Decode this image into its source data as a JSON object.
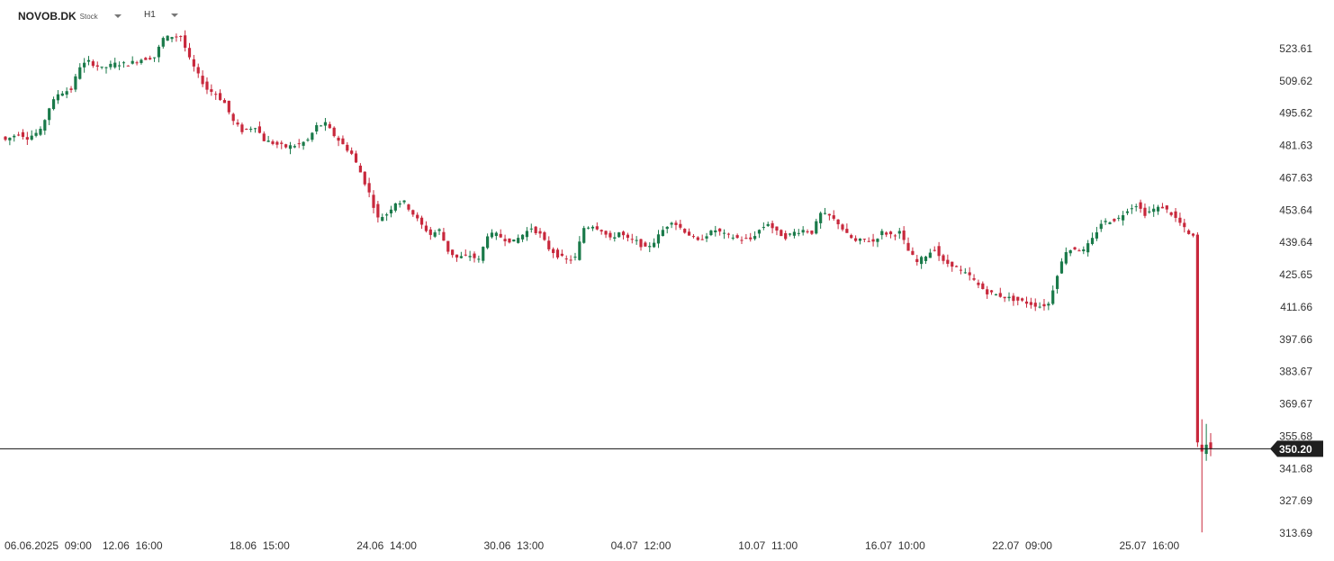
{
  "toolbar": {
    "symbol": "NOVOB.DK",
    "symbol_type": "Stock",
    "timeframe": "H1"
  },
  "colors": {
    "up": "#1a7a4a",
    "down": "#c8283c",
    "price_line": "#111111",
    "price_label_bg": "#1f1f1f"
  },
  "chart_data": {
    "type": "candlestick",
    "title": "",
    "y_axis_ticks": [
      "523.61",
      "509.62",
      "495.62",
      "481.63",
      "467.63",
      "453.64",
      "439.64",
      "425.65",
      "411.66",
      "397.66",
      "383.67",
      "369.67",
      "355.68",
      "341.68",
      "327.69",
      "313.69"
    ],
    "x_axis_ticks": [
      "06.06.2025  09:00",
      "12.06  16:00",
      "18.06  15:00",
      "24.06  14:00",
      "30.06  13:00",
      "04.07  12:00",
      "10.07  11:00",
      "16.07  10:00",
      "22.07  09:00",
      "25.07  16:00"
    ],
    "ylim": [
      313.69,
      537.6
    ],
    "current_price": "350.20",
    "series": [
      {
        "name": "",
        "anchors": [
          [
            0,
            484
          ],
          [
            3,
            487
          ],
          [
            5,
            485
          ],
          [
            8,
            488
          ],
          [
            10,
            498
          ],
          [
            12,
            504
          ],
          [
            15,
            506
          ],
          [
            17,
            516
          ],
          [
            19,
            518
          ],
          [
            22,
            515
          ],
          [
            25,
            517
          ],
          [
            28,
            517
          ],
          [
            31,
            519
          ],
          [
            34,
            520
          ],
          [
            36,
            528
          ],
          [
            38,
            529
          ],
          [
            40,
            529
          ],
          [
            42,
            519
          ],
          [
            44,
            512
          ],
          [
            46,
            506
          ],
          [
            48,
            504
          ],
          [
            50,
            500
          ],
          [
            52,
            492
          ],
          [
            54,
            488
          ],
          [
            57,
            490
          ],
          [
            59,
            484
          ],
          [
            62,
            482
          ],
          [
            64,
            481
          ],
          [
            67,
            482
          ],
          [
            69,
            484
          ],
          [
            71,
            490
          ],
          [
            73,
            491
          ],
          [
            75,
            486
          ],
          [
            77,
            482
          ],
          [
            79,
            478
          ],
          [
            81,
            470
          ],
          [
            83,
            461
          ],
          [
            85,
            450
          ],
          [
            87,
            452
          ],
          [
            89,
            457
          ],
          [
            91,
            457
          ],
          [
            93,
            452
          ],
          [
            95,
            447
          ],
          [
            97,
            443
          ],
          [
            99,
            445
          ],
          [
            101,
            436
          ],
          [
            103,
            433
          ],
          [
            106,
            434
          ],
          [
            108,
            432
          ],
          [
            110,
            443
          ],
          [
            112,
            443
          ],
          [
            114,
            441
          ],
          [
            116,
            440
          ],
          [
            118,
            443
          ],
          [
            120,
            446
          ],
          [
            122,
            443
          ],
          [
            124,
            437
          ],
          [
            126,
            434
          ],
          [
            128,
            432
          ],
          [
            130,
            433
          ],
          [
            132,
            446
          ],
          [
            134,
            447
          ],
          [
            136,
            445
          ],
          [
            138,
            441
          ],
          [
            140,
            444
          ],
          [
            142,
            441
          ],
          [
            144,
            440
          ],
          [
            146,
            437
          ],
          [
            148,
            440
          ],
          [
            150,
            445
          ],
          [
            152,
            449
          ],
          [
            154,
            446
          ],
          [
            156,
            443
          ],
          [
            158,
            440
          ],
          [
            160,
            443
          ],
          [
            162,
            445
          ],
          [
            164,
            443
          ],
          [
            166,
            442
          ],
          [
            168,
            441
          ],
          [
            170,
            441
          ],
          [
            172,
            445
          ],
          [
            174,
            448
          ],
          [
            176,
            444
          ],
          [
            178,
            442
          ],
          [
            180,
            444
          ],
          [
            182,
            445
          ],
          [
            184,
            444
          ],
          [
            186,
            452
          ],
          [
            188,
            451
          ],
          [
            190,
            448
          ],
          [
            192,
            443
          ],
          [
            194,
            440
          ],
          [
            196,
            441
          ],
          [
            198,
            440
          ],
          [
            200,
            444
          ],
          [
            202,
            443
          ],
          [
            204,
            444
          ],
          [
            206,
            436
          ],
          [
            208,
            431
          ],
          [
            210,
            434
          ],
          [
            212,
            437
          ],
          [
            214,
            431
          ],
          [
            216,
            430
          ],
          [
            218,
            427
          ],
          [
            220,
            425
          ],
          [
            222,
            421
          ],
          [
            224,
            418
          ],
          [
            226,
            417
          ],
          [
            228,
            416
          ],
          [
            230,
            415
          ],
          [
            232,
            414
          ],
          [
            234,
            413
          ],
          [
            236,
            412
          ],
          [
            238,
            413
          ],
          [
            240,
            426
          ],
          [
            242,
            436
          ],
          [
            244,
            437
          ],
          [
            246,
            436
          ],
          [
            248,
            441
          ],
          [
            250,
            448
          ],
          [
            252,
            449
          ],
          [
            254,
            450
          ],
          [
            256,
            454
          ],
          [
            258,
            456
          ],
          [
            260,
            452
          ],
          [
            262,
            454
          ],
          [
            264,
            455
          ],
          [
            266,
            452
          ],
          [
            268,
            448
          ],
          [
            270,
            443
          ],
          [
            272,
            441
          ],
          [
            273,
            353
          ],
          [
            274,
            350
          ],
          [
            275,
            352
          ]
        ]
      }
    ],
    "x_tick_candle_index": [
      0,
      29,
      58,
      87,
      116,
      145,
      174,
      203,
      232,
      261
    ]
  }
}
